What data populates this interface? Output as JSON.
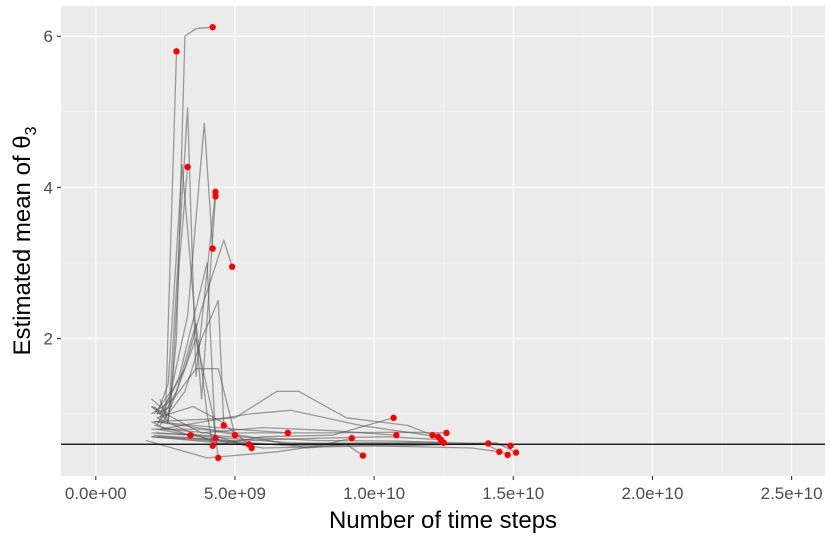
{
  "chart_data": {
    "type": "line",
    "title": "",
    "xlabel": "Number of time steps",
    "ylabel_prefix": "Estimated mean of θ",
    "ylabel_subscript": "3",
    "xlim": [
      -1250000000.0,
      26200000000.0
    ],
    "ylim": [
      0.18,
      6.4
    ],
    "x_ticks": [
      0,
      5000000000.0,
      10000000000.0,
      15000000000.0,
      20000000000.0,
      25000000000.0
    ],
    "x_tick_labels": [
      "0.0e+00",
      "5.0e+09",
      "1.0e+10",
      "1.5e+10",
      "2.0e+10",
      "2.5e+10"
    ],
    "y_ticks": [
      2,
      4,
      6
    ],
    "y_tick_labels": [
      "2",
      "4",
      "6"
    ],
    "grid": true,
    "reference_line": 0.6,
    "colors": {
      "panel_background": "#ebebeb",
      "grid_major": "#ffffff",
      "grid_minor": "#f5f5f5",
      "trajectory": "#555555",
      "endpoint": "#ff0000",
      "reference_line": "#000000"
    },
    "series": [
      {
        "values": [
          [
            2300000000.0,
            1.2
          ],
          [
            2600000000.0,
            0.9
          ],
          [
            2900000000.0,
            2.0
          ],
          [
            3200000000.0,
            6.0
          ],
          [
            3600000000.0,
            6.1
          ],
          [
            4200000000.0,
            6.12
          ]
        ]
      },
      {
        "values": [
          [
            2100000000.0,
            1.1
          ],
          [
            2500000000.0,
            0.95
          ],
          [
            2900000000.0,
            5.8
          ]
        ]
      },
      {
        "values": [
          [
            2200000000.0,
            1.0
          ],
          [
            2600000000.0,
            1.4
          ],
          [
            3100000000.0,
            4.3
          ],
          [
            3400000000.0,
            3.0
          ],
          [
            3800000000.0,
            1.2
          ],
          [
            4300000000.0,
            3.88
          ]
        ]
      },
      {
        "values": [
          [
            2200000000.0,
            1.0
          ],
          [
            2700000000.0,
            1.1
          ],
          [
            3000000000.0,
            3.0
          ],
          [
            3300000000.0,
            4.27
          ]
        ]
      },
      {
        "values": [
          [
            2000000000.0,
            1.1
          ],
          [
            2600000000.0,
            0.9
          ],
          [
            3300000000.0,
            5.05
          ],
          [
            3600000000.0,
            1.5
          ],
          [
            4300000000.0,
            3.94
          ]
        ]
      },
      {
        "values": [
          [
            2100000000.0,
            1.0
          ],
          [
            2700000000.0,
            1.3
          ],
          [
            3300000000.0,
            2.3
          ],
          [
            3900000000.0,
            4.85
          ],
          [
            4200000000.0,
            3.19
          ]
        ]
      },
      {
        "values": [
          [
            2300000000.0,
            1.0
          ],
          [
            3200000000.0,
            1.6
          ],
          [
            3800000000.0,
            2.4
          ],
          [
            4600000000.0,
            3.3
          ],
          [
            4900000000.0,
            2.95
          ]
        ]
      },
      {
        "values": [
          [
            2300000000.0,
            0.9
          ],
          [
            2900000000.0,
            1.3
          ],
          [
            3600000000.0,
            2.2
          ],
          [
            4000000000.0,
            1.0
          ],
          [
            4200000000.0,
            0.58
          ]
        ]
      },
      {
        "values": [
          [
            2000000000.0,
            1.2
          ],
          [
            2600000000.0,
            1.0
          ],
          [
            3600000000.0,
            2.0
          ],
          [
            4200000000.0,
            1.0
          ],
          [
            4400000000.0,
            0.42
          ]
        ]
      },
      {
        "values": [
          [
            2200000000.0,
            0.85
          ],
          [
            3000000000.0,
            1.5
          ],
          [
            4000000000.0,
            3.0
          ],
          [
            4200000000.0,
            1.4
          ],
          [
            4300000000.0,
            0.68
          ]
        ]
      },
      {
        "values": [
          [
            2100000000.0,
            0.85
          ],
          [
            2700000000.0,
            0.8
          ],
          [
            3400000000.0,
            0.72
          ]
        ]
      },
      {
        "values": [
          [
            2000000000.0,
            1.0
          ],
          [
            2800000000.0,
            1.2
          ],
          [
            3600000000.0,
            1.6
          ],
          [
            4400000000.0,
            1.6
          ],
          [
            5000000000.0,
            0.72
          ]
        ]
      },
      {
        "values": [
          [
            2300000000.0,
            0.85
          ],
          [
            3200000000.0,
            1.3
          ],
          [
            3800000000.0,
            2.0
          ],
          [
            4400000000.0,
            2.5
          ],
          [
            4600000000.0,
            0.85
          ]
        ]
      },
      {
        "values": [
          [
            2200000000.0,
            0.95
          ],
          [
            3500000000.0,
            1.1
          ],
          [
            4500000000.0,
            0.9
          ],
          [
            5500000000.0,
            0.6
          ]
        ]
      },
      {
        "values": [
          [
            2000000000.0,
            0.9
          ],
          [
            2500000000.0,
            0.8
          ],
          [
            4000000000.0,
            0.75
          ],
          [
            5600000000.0,
            0.55
          ]
        ]
      },
      {
        "values": [
          [
            2200000000.0,
            0.9
          ],
          [
            3500000000.0,
            0.85
          ],
          [
            5000000000.0,
            0.8
          ],
          [
            6900000000.0,
            0.75
          ]
        ]
      },
      {
        "values": [
          [
            1800000000.0,
            0.65
          ],
          [
            4000000000.0,
            0.42
          ],
          [
            6500000000.0,
            0.5
          ],
          [
            8000000000.0,
            0.58
          ],
          [
            9200000000.0,
            0.68
          ]
        ]
      },
      {
        "values": [
          [
            2000000000.0,
            0.8
          ],
          [
            3800000000.0,
            0.8
          ],
          [
            5500000000.0,
            0.7
          ],
          [
            7600000000.0,
            0.55
          ],
          [
            9000000000.0,
            0.6
          ],
          [
            9600000000.0,
            0.45
          ]
        ]
      },
      {
        "values": [
          [
            2200000000.0,
            0.95
          ],
          [
            4400000000.0,
            0.6
          ],
          [
            6000000000.0,
            0.7
          ],
          [
            8500000000.0,
            0.72
          ],
          [
            10700000000.0,
            0.95
          ]
        ]
      },
      {
        "values": [
          [
            2000000000.0,
            1.1
          ],
          [
            3800000000.0,
            0.75
          ],
          [
            6000000000.0,
            0.82
          ],
          [
            8500000000.0,
            0.78
          ],
          [
            10800000000.0,
            0.72
          ]
        ]
      },
      {
        "values": [
          [
            2100000000.0,
            0.9
          ],
          [
            5000000000.0,
            0.95
          ],
          [
            6500000000.0,
            1.3
          ],
          [
            7300000000.0,
            1.3
          ],
          [
            9000000000.0,
            0.95
          ],
          [
            11200000000.0,
            0.85
          ],
          [
            12100000000.0,
            0.72
          ]
        ]
      },
      {
        "values": [
          [
            2300000000.0,
            0.8
          ],
          [
            5500000000.0,
            1.0
          ],
          [
            7000000000.0,
            1.05
          ],
          [
            9500000000.0,
            0.85
          ],
          [
            12300000000.0,
            0.7
          ]
        ]
      },
      {
        "values": [
          [
            2200000000.0,
            0.7
          ],
          [
            5000000000.0,
            0.65
          ],
          [
            8000000000.0,
            0.68
          ],
          [
            10500000000.0,
            0.7
          ],
          [
            12400000000.0,
            0.66
          ]
        ]
      },
      {
        "values": [
          [
            2000000000.0,
            0.75
          ],
          [
            5000000000.0,
            0.7
          ],
          [
            8000000000.0,
            0.65
          ],
          [
            11000000000.0,
            0.64
          ],
          [
            12500000000.0,
            0.62
          ]
        ]
      },
      {
        "values": [
          [
            2100000000.0,
            0.9
          ],
          [
            5000000000.0,
            0.75
          ],
          [
            8000000000.0,
            0.75
          ],
          [
            11000000000.0,
            0.76
          ],
          [
            12600000000.0,
            0.75
          ]
        ]
      },
      {
        "values": [
          [
            2000000000.0,
            0.7
          ],
          [
            5000000000.0,
            0.6
          ],
          [
            9000000000.0,
            0.6
          ],
          [
            12000000000.0,
            0.63
          ],
          [
            14100000000.0,
            0.61
          ]
        ]
      },
      {
        "values": [
          [
            2200000000.0,
            0.8
          ],
          [
            6000000000.0,
            0.55
          ],
          [
            10000000000.0,
            0.58
          ],
          [
            13500000000.0,
            0.55
          ],
          [
            14500000000.0,
            0.5
          ]
        ]
      },
      {
        "values": [
          [
            2000000000.0,
            0.7
          ],
          [
            6000000000.0,
            0.6
          ],
          [
            10000000000.0,
            0.62
          ],
          [
            14000000000.0,
            0.6
          ],
          [
            14800000000.0,
            0.46
          ]
        ]
      },
      {
        "values": [
          [
            2200000000.0,
            0.75
          ],
          [
            7000000000.0,
            0.62
          ],
          [
            11000000000.0,
            0.6
          ],
          [
            14300000000.0,
            0.6
          ],
          [
            14900000000.0,
            0.58
          ]
        ]
      },
      {
        "values": [
          [
            2100000000.0,
            0.72
          ],
          [
            7000000000.0,
            0.58
          ],
          [
            11000000000.0,
            0.58
          ],
          [
            14400000000.0,
            0.62
          ],
          [
            15100000000.0,
            0.49
          ]
        ]
      }
    ]
  }
}
